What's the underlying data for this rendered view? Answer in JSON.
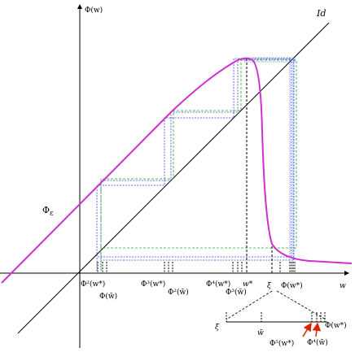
{
  "labels": {
    "y_axis": "Φ(w)",
    "x_axis": "w",
    "identity": "Id",
    "phi_eps": "Φ",
    "phi_eps_sub": "ε",
    "phi2_wstar": "Φ²(w*)",
    "phi_wtilde": "Φ(w̃)",
    "phi3_wstar": "Φ³(w*)",
    "phi2_wtilde": "Φ²(w̃)",
    "phi4_wstar": "Φ⁴(w*)",
    "phi3_wtilde": "Φ³(w̃)",
    "wstar": "w*",
    "xi": "ξ",
    "phi_wstar": "Φ(w*)",
    "inset_xi": "ξ",
    "inset_wtilde": "w̃",
    "inset_phi5": "Φ⁵(w*)",
    "inset_phi4": "Φ⁴(w̃)",
    "inset_phi_wstar": "Φ(w*)"
  },
  "colors": {
    "curve": "#cc33cc",
    "axis": "#000000",
    "cobweb_blue": "#3344dd",
    "cobweb_green": "#22aa22",
    "arrow": "#dd2200"
  }
}
